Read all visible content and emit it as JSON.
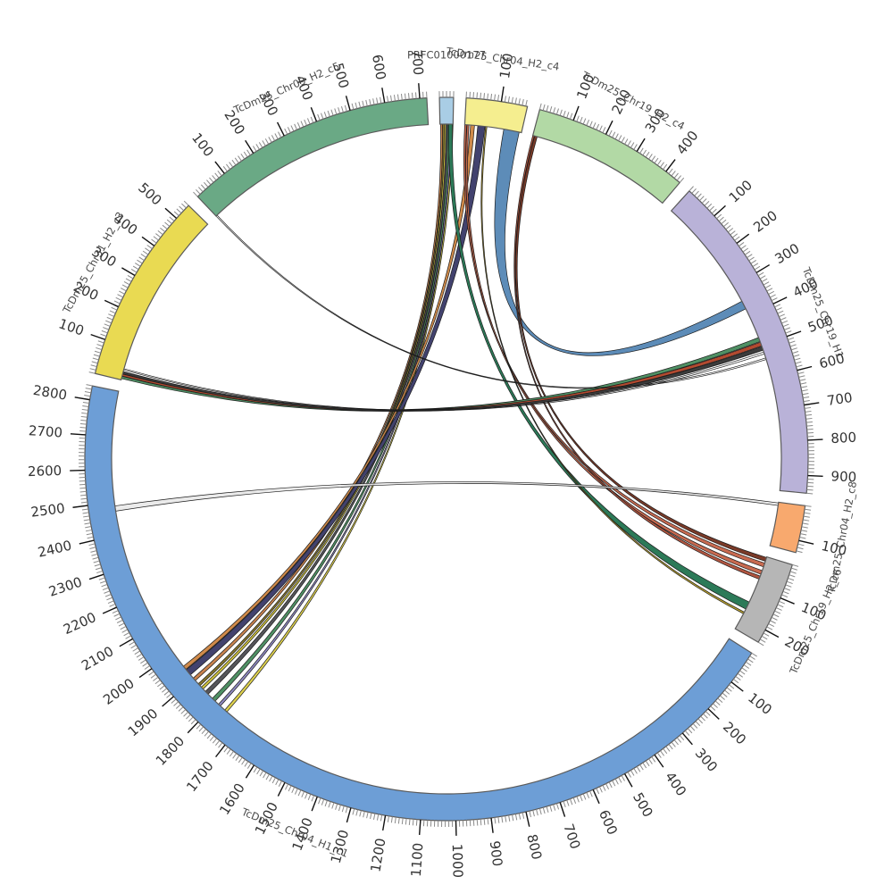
{
  "chart_data": {
    "type": "chord",
    "subtype": "circos-synteny-plot",
    "title": "",
    "background": "#ffffff",
    "ring": {
      "gap_degrees": 2,
      "segment_border_color": "#5a5a5a",
      "tick_minor_interval": 10,
      "tick_major_interval": 100,
      "tick_color_minor": "#8a8a8a",
      "tick_color_major": "#111111",
      "tick_label_color": "#333333",
      "segment_label_color": "#4a4a4a"
    },
    "segments": [
      {
        "id": "PRFC01000177",
        "label": "PRFC01000177",
        "length": 40,
        "color": "#a9cde5"
      },
      {
        "id": "TcDm25_Chr04_H2_c4",
        "label": "TcDm25_Chr04_H2_c4",
        "length": 175,
        "color": "#f5ee8f"
      },
      {
        "id": "TcDm25_Chr19_H2_c4",
        "label": "TcDm25_Chr19_H2_c4",
        "length": 450,
        "color": "#b2d9a5"
      },
      {
        "id": "TcDm25_Chr19_H1",
        "label": "TcDm25_Chr19_H1",
        "length": 950,
        "color": "#b9b2d8"
      },
      {
        "id": "TcDm25_Chr04_H2_c8",
        "label": "TcDm25_Chr04_H2_c8",
        "length": 135,
        "color": "#f8a96e"
      },
      {
        "id": "TcDm25_Chr19_H2_c6",
        "label": "TcDm25_Chr19_H2_c6",
        "length": 240,
        "color": "#b6b6b6"
      },
      {
        "id": "TcDm25_Chr04_H1_c1",
        "label": "TcDm25_Chr04_H1_c1",
        "length": 2840,
        "color": "#6d9ed6"
      },
      {
        "id": "TcDm25_Chr31_H2_c3",
        "label": "TcDm25_Chr31_H2_c3",
        "length": 550,
        "color": "#e9da52"
      },
      {
        "id": "TcDm25_Chr09_H2_c5",
        "label": "TcDm25_Chr09_H2_c5",
        "length": 720,
        "color": "#6aa985"
      }
    ],
    "links": [
      {
        "source": [
          "PRFC01000177",
          2,
          8
        ],
        "target": [
          "TcDm25_Chr04_H1_c1",
          1893,
          1903
        ],
        "color": "#c8824e",
        "opacity": 1
      },
      {
        "source": [
          "PRFC01000177",
          8,
          13
        ],
        "target": [
          "TcDm25_Chr04_H1_c1",
          1872,
          1880
        ],
        "color": "#86762f",
        "opacity": 1
      },
      {
        "source": [
          "PRFC01000177",
          13,
          18
        ],
        "target": [
          "TcDm25_Chr04_H1_c1",
          1858,
          1866
        ],
        "color": "#cfc23e",
        "opacity": 1
      },
      {
        "source": [
          "PRFC01000177",
          18,
          24
        ],
        "target": [
          "TcDm25_Chr04_H1_c1",
          1836,
          1848
        ],
        "color": "#55555a",
        "opacity": 1
      },
      {
        "source": [
          "PRFC01000177",
          24,
          30
        ],
        "target": [
          "TcDm25_Chr04_H1_c1",
          1806,
          1818
        ],
        "color": "#4f9064",
        "opacity": 1
      },
      {
        "source": [
          "PRFC01000177",
          30,
          35
        ],
        "target": [
          "TcDm25_Chr04_H1_c1",
          1784,
          1792
        ],
        "color": "#8e88c0",
        "opacity": 1
      },
      {
        "source": [
          "PRFC01000177",
          35,
          40
        ],
        "target": [
          "TcDm25_Chr04_H1_c1",
          1757,
          1766
        ],
        "color": "#ddd04e",
        "opacity": 1
      },
      {
        "source": [
          "TcDm25_Chr04_H2_c4",
          18,
          30
        ],
        "target": [
          "TcDm25_Chr04_H1_c1",
          1938,
          1950
        ],
        "color": "#d08a4a",
        "opacity": 1
      },
      {
        "source": [
          "TcDm25_Chr04_H2_c4",
          40,
          62
        ],
        "target": [
          "TcDm25_Chr04_H1_c1",
          1916,
          1936
        ],
        "color": "#42426e",
        "opacity": 1
      },
      {
        "source": [
          "TcDm25_Chr04_H2_c4",
          120,
          168
        ],
        "target": [
          "TcDm25_Chr19_H1",
          352,
          378
        ],
        "color": "#5d8cb8",
        "opacity": 1
      },
      {
        "source": [
          "TcDm25_Chr04_H2_c4",
          0,
          6
        ],
        "target": [
          "TcDm25_Chr19_H2_c6",
          20,
          32
        ],
        "color": "#c86a50",
        "opacity": 1
      },
      {
        "source": [
          "TcDm25_Chr04_H2_c4",
          7,
          13
        ],
        "target": [
          "TcDm25_Chr19_H2_c6",
          44,
          56
        ],
        "color": "#c86a50",
        "opacity": 1
      },
      {
        "source": [
          "TcDm25_Chr19_H2_c4",
          0,
          5
        ],
        "target": [
          "TcDm25_Chr19_H2_c6",
          62,
          72
        ],
        "color": "#b05540",
        "opacity": 1
      },
      {
        "source": [
          "TcDm25_Chr19_H2_c4",
          6,
          14
        ],
        "target": [
          "TcDm25_Chr19_H2_c6",
          2,
          14
        ],
        "color": "#7a3a28",
        "opacity": 1
      },
      {
        "source": [
          "PRFC01000177",
          26,
          38
        ],
        "target": [
          "TcDm25_Chr19_H2_c6",
          148,
          172
        ],
        "color": "#2c7a58",
        "opacity": 1
      },
      {
        "source": [
          "TcDm25_Chr04_H2_c4",
          64,
          68
        ],
        "target": [
          "TcDm25_Chr19_H2_c6",
          182,
          188
        ],
        "color": "#b8a030",
        "opacity": 1
      },
      {
        "source": [
          "TcDm25_Chr31_H2_c3",
          4,
          11
        ],
        "target": [
          "TcDm25_Chr19_H1",
          474,
          487
        ],
        "color": "#4f9064",
        "opacity": 1
      },
      {
        "source": [
          "TcDm25_Chr31_H2_c3",
          12,
          18
        ],
        "target": [
          "TcDm25_Chr19_H1",
          489,
          501
        ],
        "color": "#b34a30",
        "opacity": 1
      },
      {
        "source": [
          "TcDm25_Chr31_H2_c3",
          19,
          26
        ],
        "target": [
          "TcDm25_Chr19_H1",
          503,
          515
        ],
        "color": "#3c3c3c",
        "opacity": 1
      },
      {
        "source": [
          "TcDm25_Chr31_H2_c3",
          31,
          35
        ],
        "target": [
          "TcDm25_Chr19_H1",
          521,
          527
        ],
        "color": "#ffffff",
        "opacity": 0
      },
      {
        "source": [
          "TcDm25_Chr04_H1_c1",
          2472,
          2488
        ],
        "target": [
          "TcDm25_Chr04_H2_c8",
          2,
          10
        ],
        "color": "#e8e8e8",
        "opacity": 0.85
      },
      {
        "source": [
          "TcDm25_Chr09_H2_c5",
          0,
          4
        ],
        "target": [
          "TcDm25_Chr19_H1",
          540,
          545
        ],
        "color": "#ffffff",
        "opacity": 0
      }
    ]
  }
}
